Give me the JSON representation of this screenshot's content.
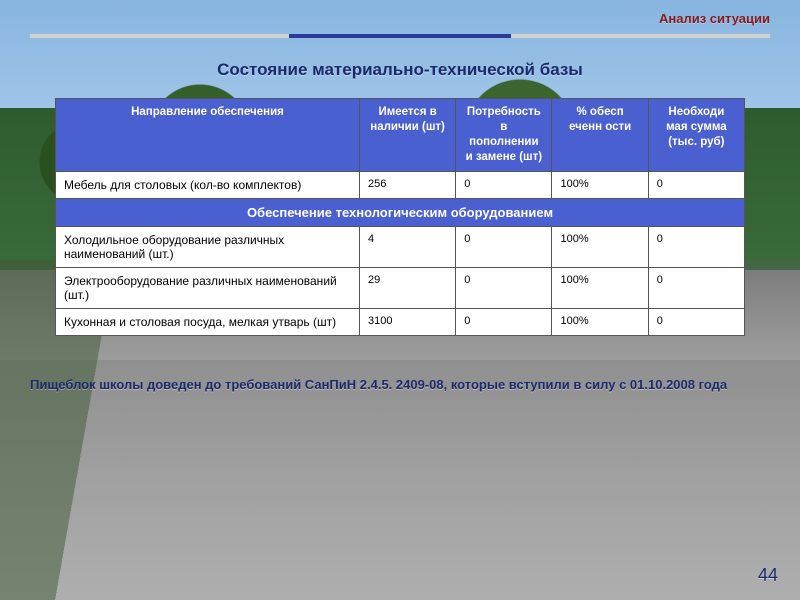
{
  "header": {
    "tag": "Анализ ситуации"
  },
  "title": "Состояние материально-технической базы",
  "table": {
    "columns": [
      "Направление обеспечения",
      "Имеется в наличии (шт)",
      "Потребность в пополнении и замене (шт)",
      "% обесп еченн ости",
      "Необходи мая сумма (тыс. руб)"
    ],
    "rows_a": [
      {
        "label": "Мебель для столовых (кол-во комплектов)",
        "c1": "256",
        "c2": "0",
        "c3": "100%",
        "c4": "0"
      }
    ],
    "section_label": "Обеспечение  технологическим оборудованием",
    "rows_b": [
      {
        "label": "Холодильное оборудование различных наименований (шт.)",
        "c1": "4",
        "c2": "0",
        "c3": "100%",
        "c4": "0"
      },
      {
        "label": "Электрооборудование различных наименований (шт.)",
        "c1": "29",
        "c2": "0",
        "c3": "100%",
        "c4": "0"
      },
      {
        "label": "Кухонная и столовая посуда, мелкая утварь (шт)",
        "c1": "3100",
        "c2": "0",
        "c3": "100%",
        "c4": "0"
      }
    ]
  },
  "footnote": "Пищеблок школы доведен до требований СанПиН 2.4.5. 2409-08, которые вступили в силу с 01.10.2008 года",
  "page_number": "44",
  "colors": {
    "accent_header": "#4a5fd0",
    "title_text": "#1a2a6a",
    "tag_text": "#8a1a1a",
    "border": "#555555",
    "white": "#ffffff"
  }
}
